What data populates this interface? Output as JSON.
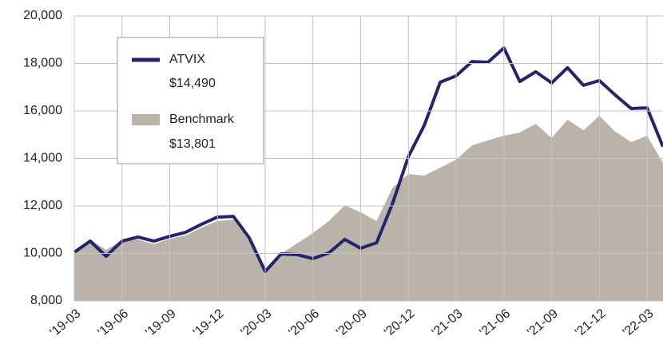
{
  "chart_data": {
    "type": "line-area",
    "categories": [
      "'19-03",
      null,
      null,
      "'19-06",
      null,
      null,
      "'19-09",
      null,
      null,
      "'19-12",
      null,
      null,
      "'20-03",
      null,
      null,
      "'20-06",
      null,
      null,
      "'20-09",
      null,
      null,
      "'20-12",
      null,
      null,
      "'21-03",
      null,
      null,
      "'21-06",
      null,
      null,
      "'21-09",
      null,
      null,
      "'21-12",
      null,
      null,
      "'22-03",
      null
    ],
    "series": [
      {
        "name": "ATVIX",
        "legend_value": "$14,490",
        "color": "#23246e",
        "kind": "line",
        "values": [
          10050,
          10520,
          9880,
          10520,
          10690,
          10520,
          10720,
          10890,
          11230,
          11530,
          11560,
          10650,
          9240,
          9980,
          9950,
          9780,
          10020,
          10590,
          10220,
          10450,
          12100,
          14080,
          15400,
          17210,
          17480,
          18080,
          18050,
          18650,
          17240,
          17650,
          17180,
          17820,
          17080,
          17280,
          16670,
          16100,
          16130,
          14490
        ]
      },
      {
        "name": "Benchmark",
        "legend_value": "$13,801",
        "color": "#b9b3aa",
        "kind": "area",
        "values": [
          9980,
          10590,
          10150,
          10550,
          10590,
          10390,
          10620,
          10760,
          11090,
          11360,
          11430,
          10520,
          9340,
          9980,
          10420,
          10860,
          11360,
          12030,
          11730,
          11360,
          12770,
          13340,
          13280,
          13610,
          13950,
          14550,
          14760,
          14960,
          15090,
          15460,
          14860,
          15630,
          15190,
          15800,
          15130,
          14690,
          14960,
          13801
        ]
      }
    ],
    "ylim": [
      8000,
      20000
    ],
    "yticks": [
      {
        "value": 8000,
        "label": "8,000"
      },
      {
        "value": 10000,
        "label": "10,000"
      },
      {
        "value": 12000,
        "label": "12,000"
      },
      {
        "value": 14000,
        "label": "14,000"
      },
      {
        "value": 16000,
        "label": "16,000"
      },
      {
        "value": 18000,
        "label": "18,000"
      },
      {
        "value": 20000,
        "label": "20,000"
      }
    ],
    "grid": true
  }
}
